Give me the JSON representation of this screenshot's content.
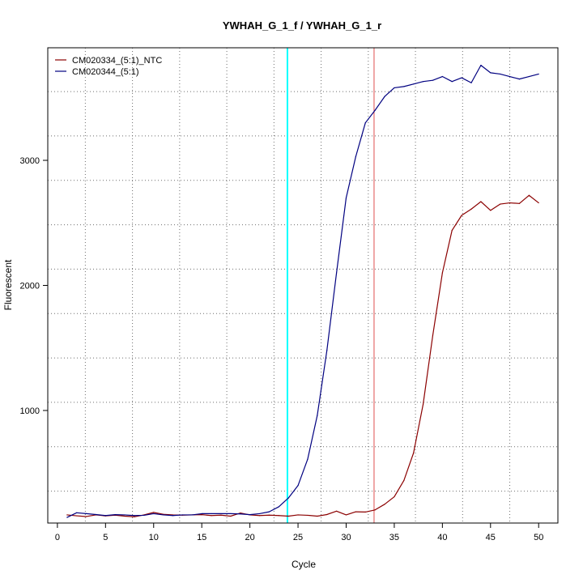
{
  "chart_data": {
    "type": "line",
    "title": "YWHAH_G_1_f / YWHAH_G_1_r",
    "xlabel": "Cycle",
    "ylabel": "Fluorescent",
    "xlim": [
      -1,
      52
    ],
    "ylim": [
      100,
      3900
    ],
    "x_ticks": [
      0,
      5,
      10,
      15,
      20,
      25,
      30,
      35,
      40,
      45,
      50
    ],
    "y_ticks": [
      1000,
      2000,
      3000
    ],
    "grid": true,
    "grid_x_dotted": [
      2.9,
      7.8,
      12.7,
      17.6,
      22.5,
      27.4,
      32.3,
      37.2,
      42.1,
      47.0
    ],
    "grid_y_dotted": [
      355,
      710,
      1065,
      1420,
      1775,
      2130,
      2485,
      2840,
      3195,
      3550
    ],
    "legend_position": "top-left",
    "threshold_lines": [
      {
        "x": 23.9,
        "color": "#00ffff"
      },
      {
        "x": 32.9,
        "color": "#e05050"
      }
    ],
    "series": [
      {
        "name": "CM020334_(5:1)_NTC",
        "color": "#8b0000",
        "x": [
          1,
          2,
          3,
          4,
          5,
          6,
          7,
          8,
          9,
          10,
          11,
          12,
          13,
          14,
          15,
          16,
          17,
          18,
          19,
          20,
          21,
          22,
          23,
          24,
          25,
          26,
          27,
          28,
          29,
          30,
          31,
          32,
          33,
          34,
          35,
          36,
          37,
          38,
          39,
          40,
          41,
          42,
          43,
          44,
          45,
          46,
          47,
          48,
          49,
          50
        ],
        "values": [
          165,
          158,
          152,
          165,
          157,
          163,
          155,
          150,
          165,
          185,
          170,
          165,
          163,
          165,
          167,
          160,
          163,
          155,
          180,
          165,
          160,
          163,
          160,
          155,
          165,
          162,
          155,
          168,
          195,
          165,
          190,
          188,
          205,
          250,
          310,
          440,
          660,
          1050,
          1600,
          2100,
          2440,
          2560,
          2610,
          2670,
          2600,
          2650,
          2660,
          2655,
          2720,
          2660
        ]
      },
      {
        "name": "CM020344_(5:1)",
        "color": "#000080",
        "x": [
          1,
          2,
          3,
          4,
          5,
          6,
          7,
          8,
          9,
          10,
          11,
          12,
          13,
          14,
          15,
          16,
          17,
          18,
          19,
          20,
          21,
          22,
          23,
          24,
          25,
          26,
          27,
          28,
          29,
          30,
          31,
          32,
          33,
          34,
          35,
          36,
          37,
          38,
          39,
          40,
          41,
          42,
          43,
          44,
          45,
          46,
          47,
          48,
          49,
          50
        ],
        "values": [
          145,
          182,
          175,
          168,
          160,
          167,
          165,
          160,
          162,
          175,
          165,
          160,
          165,
          165,
          175,
          175,
          175,
          175,
          173,
          167,
          175,
          190,
          230,
          300,
          400,
          610,
          960,
          1480,
          2100,
          2700,
          3030,
          3300,
          3400,
          3510,
          3580,
          3590,
          3610,
          3630,
          3640,
          3670,
          3630,
          3660,
          3620,
          3760,
          3700,
          3690,
          3670,
          3650,
          3670,
          3690
        ]
      }
    ]
  }
}
